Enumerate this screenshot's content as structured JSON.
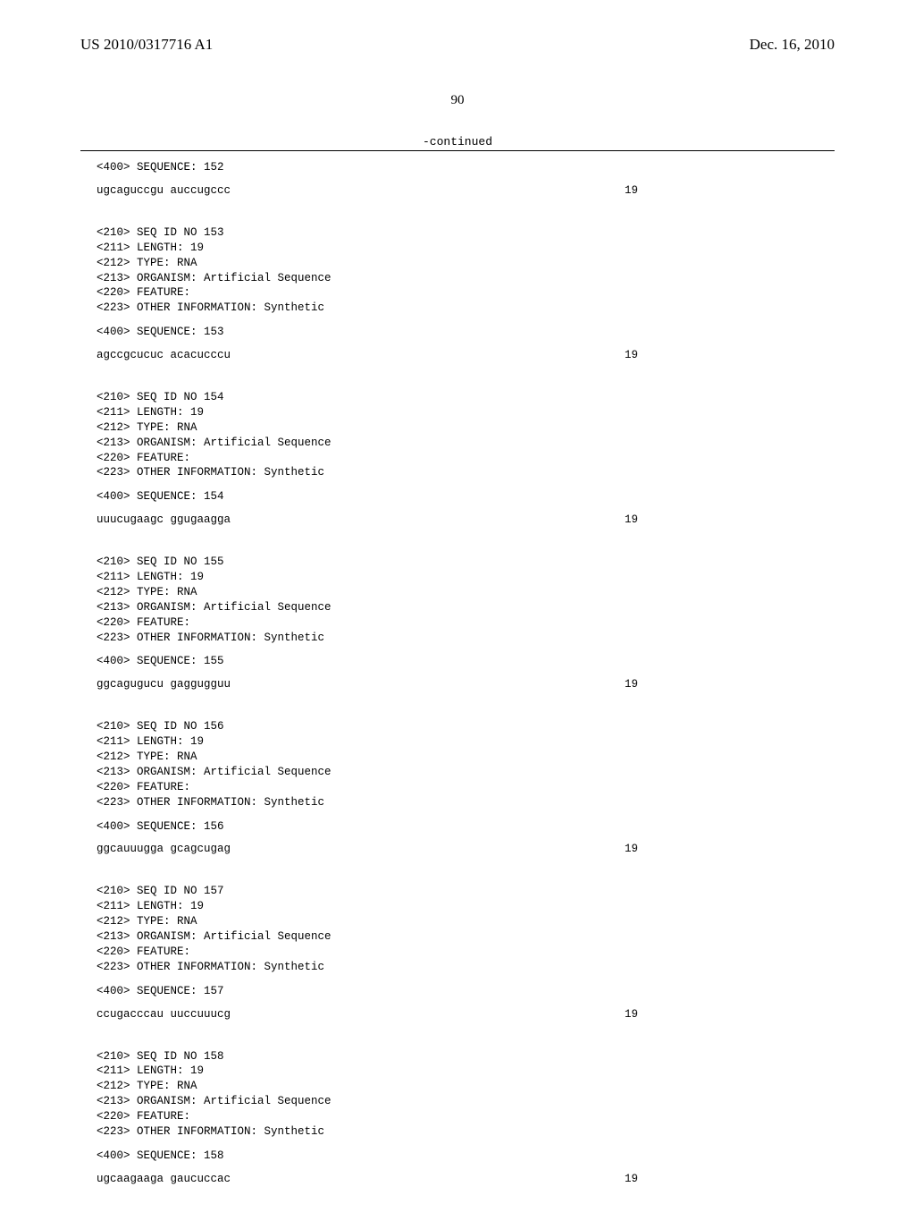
{
  "header": {
    "pub_number": "US 2010/0317716 A1",
    "pub_date": "Dec. 16, 2010"
  },
  "page_number": "90",
  "continued_label": "-continued",
  "blocks": [
    {
      "preline": "<400> SEQUENCE: 152",
      "sequence": "ugcaguccgu auccugccc",
      "length_num": "19"
    },
    {
      "meta": "<210> SEQ ID NO 153\n<211> LENGTH: 19\n<212> TYPE: RNA\n<213> ORGANISM: Artificial Sequence\n<220> FEATURE:\n<223> OTHER INFORMATION: Synthetic",
      "preline": "<400> SEQUENCE: 153",
      "sequence": "agccgcucuc acacucccu",
      "length_num": "19"
    },
    {
      "meta": "<210> SEQ ID NO 154\n<211> LENGTH: 19\n<212> TYPE: RNA\n<213> ORGANISM: Artificial Sequence\n<220> FEATURE:\n<223> OTHER INFORMATION: Synthetic",
      "preline": "<400> SEQUENCE: 154",
      "sequence": "uuucugaagc ggugaagga",
      "length_num": "19"
    },
    {
      "meta": "<210> SEQ ID NO 155\n<211> LENGTH: 19\n<212> TYPE: RNA\n<213> ORGANISM: Artificial Sequence\n<220> FEATURE:\n<223> OTHER INFORMATION: Synthetic",
      "preline": "<400> SEQUENCE: 155",
      "sequence": "ggcagugucu gaggugguu",
      "length_num": "19"
    },
    {
      "meta": "<210> SEQ ID NO 156\n<211> LENGTH: 19\n<212> TYPE: RNA\n<213> ORGANISM: Artificial Sequence\n<220> FEATURE:\n<223> OTHER INFORMATION: Synthetic",
      "preline": "<400> SEQUENCE: 156",
      "sequence": "ggcauuugga gcagcugag",
      "length_num": "19"
    },
    {
      "meta": "<210> SEQ ID NO 157\n<211> LENGTH: 19\n<212> TYPE: RNA\n<213> ORGANISM: Artificial Sequence\n<220> FEATURE:\n<223> OTHER INFORMATION: Synthetic",
      "preline": "<400> SEQUENCE: 157",
      "sequence": "ccugacccau uuccuuucg",
      "length_num": "19"
    },
    {
      "meta": "<210> SEQ ID NO 158\n<211> LENGTH: 19\n<212> TYPE: RNA\n<213> ORGANISM: Artificial Sequence\n<220> FEATURE:\n<223> OTHER INFORMATION: Synthetic",
      "preline": "<400> SEQUENCE: 158",
      "sequence": "ugcaagaaga gaucuccac",
      "length_num": "19"
    }
  ]
}
